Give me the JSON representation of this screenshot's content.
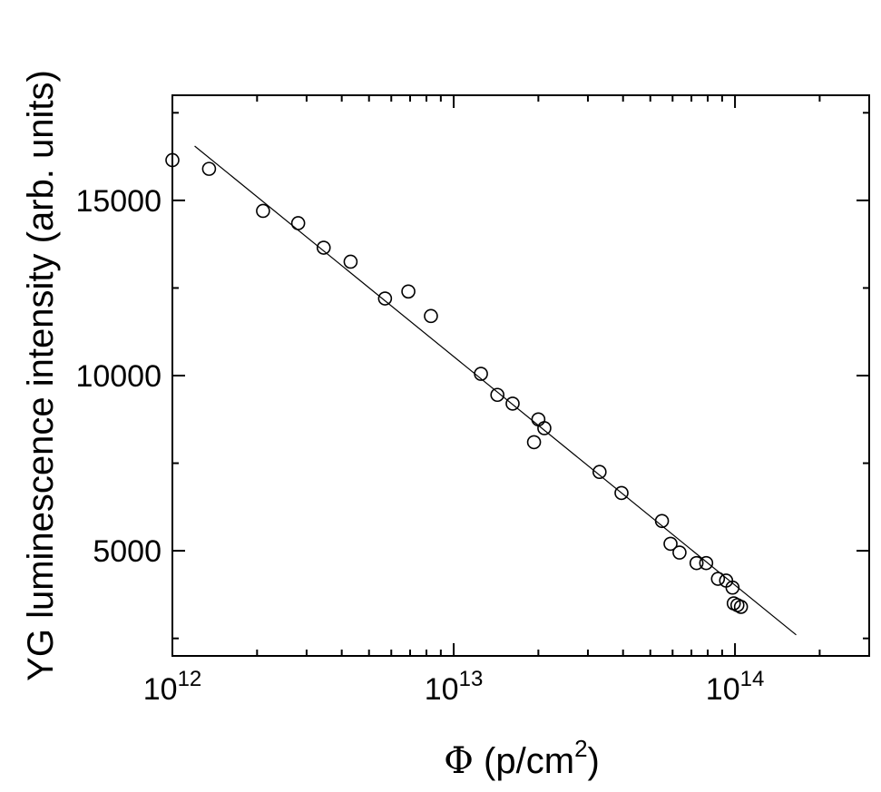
{
  "chart_data": {
    "type": "scatter",
    "title": "",
    "xlabel_symbol": "Φ",
    "xlabel_unit_base": " (p/cm",
    "xlabel_unit_sup": "2",
    "xlabel_unit_end": ")",
    "ylabel": "YG luminescence intensity  (arb. units)",
    "x_scale": "log",
    "xlim": [
      1000000000000.0,
      300000000000000.0
    ],
    "ylim": [
      2000,
      18000
    ],
    "x_ticks": [
      {
        "value": 1000000000000.0,
        "base": "10",
        "exp": "12"
      },
      {
        "value": 10000000000000.0,
        "base": "10",
        "exp": "13"
      },
      {
        "value": 100000000000000.0,
        "base": "10",
        "exp": "14"
      }
    ],
    "y_ticks": [
      {
        "value": 5000,
        "label": "5000"
      },
      {
        "value": 10000,
        "label": "10000"
      },
      {
        "value": 15000,
        "label": "15000"
      }
    ],
    "series": [
      {
        "x": [
          1000000000000.0,
          1350000000000.0,
          2100000000000.0,
          2800000000000.0,
          3450000000000.0,
          4300000000000.0,
          5700000000000.0,
          6900000000000.0,
          8300000000000.0,
          12500000000000.0,
          14300000000000.0,
          16200000000000.0,
          19300000000000.0,
          20000000000000.0,
          21000000000000.0,
          33000000000000.0,
          39500000000000.0,
          55000000000000.0,
          59000000000000.0,
          63500000000000.0,
          73000000000000.0,
          79000000000000.0,
          87000000000000.0,
          93000000000000.0,
          98000000000000.0,
          99000000000000.0,
          102000000000000.0,
          105000000000000.0
        ],
        "y": [
          16150,
          15900,
          14700,
          14350,
          13650,
          13250,
          12200,
          12400,
          11700,
          10050,
          9450,
          9200,
          8100,
          8750,
          8500,
          7250,
          6650,
          5850,
          5200,
          4950,
          4650,
          4650,
          4200,
          4150,
          3950,
          3500,
          3450,
          3400
        ]
      }
    ],
    "fit_line": {
      "x": [
        1200000000000.0,
        165000000000000.0
      ],
      "y": [
        16550,
        2600
      ]
    },
    "grid": false,
    "legend": "none"
  }
}
